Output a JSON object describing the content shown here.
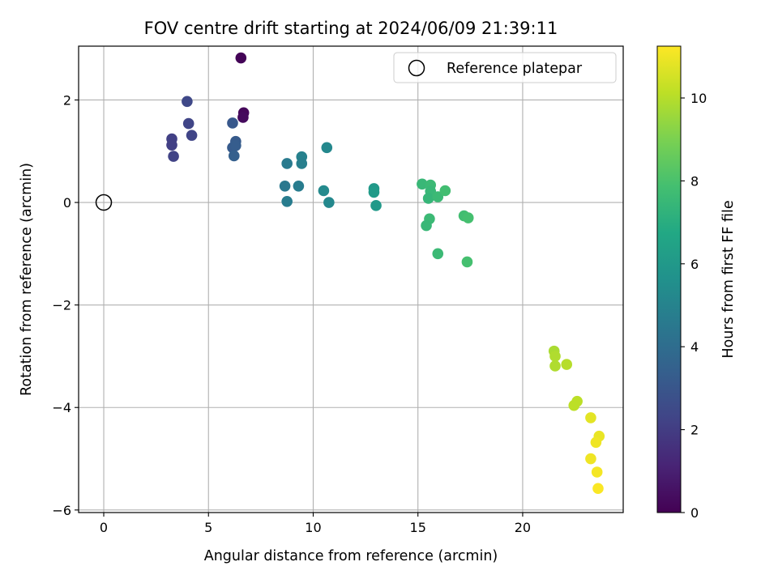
{
  "chart_data": {
    "type": "scatter",
    "title": "FOV centre drift starting at 2024/06/09 21:39:11",
    "xlabel": "Angular distance from reference (arcmin)",
    "ylabel": "Rotation from reference (arcmin)",
    "xlim": [
      -1.2,
      24.8
    ],
    "ylim": [
      -6.05,
      3.05
    ],
    "x_ticks": [
      0,
      5,
      10,
      15,
      20
    ],
    "x_tick_labels": [
      "0",
      "5",
      "10",
      "15",
      "20"
    ],
    "y_ticks": [
      -6,
      -4,
      -2,
      0,
      2
    ],
    "y_tick_labels": [
      "−6",
      "−4",
      "−2",
      "0",
      "2"
    ],
    "grid": true,
    "legend": {
      "placement": "top-right",
      "entries": [
        {
          "label": "Reference platepar",
          "marker": "open-circle",
          "color": "#000000"
        }
      ]
    },
    "reference_point": {
      "x": 0,
      "y": 0
    },
    "colorbar": {
      "label": "Hours from first FF file",
      "colormap": "viridis",
      "range": [
        0,
        11.25
      ],
      "ticks": [
        0,
        2,
        4,
        6,
        8,
        10
      ],
      "tick_labels": [
        "0",
        "2",
        "4",
        "6",
        "8",
        "10"
      ]
    },
    "points": [
      {
        "x": 6.55,
        "y": 2.82,
        "hours": 0.1
      },
      {
        "x": 6.68,
        "y": 1.75,
        "hours": 0.2
      },
      {
        "x": 6.65,
        "y": 1.66,
        "hours": 0.3
      },
      {
        "x": 3.98,
        "y": 1.97,
        "hours": 2.4
      },
      {
        "x": 4.05,
        "y": 1.54,
        "hours": 2.3
      },
      {
        "x": 4.2,
        "y": 1.31,
        "hours": 2.3
      },
      {
        "x": 3.25,
        "y": 1.24,
        "hours": 2.1
      },
      {
        "x": 3.25,
        "y": 1.12,
        "hours": 2.1
      },
      {
        "x": 3.33,
        "y": 0.9,
        "hours": 2.2
      },
      {
        "x": 6.15,
        "y": 1.55,
        "hours": 3.1
      },
      {
        "x": 6.3,
        "y": 1.19,
        "hours": 3.2
      },
      {
        "x": 6.15,
        "y": 1.07,
        "hours": 3.2
      },
      {
        "x": 6.3,
        "y": 1.11,
        "hours": 3.3
      },
      {
        "x": 6.22,
        "y": 0.91,
        "hours": 3.4
      },
      {
        "x": 8.75,
        "y": 0.76,
        "hours": 4.6
      },
      {
        "x": 8.65,
        "y": 0.32,
        "hours": 4.5
      },
      {
        "x": 8.75,
        "y": 0.02,
        "hours": 4.7
      },
      {
        "x": 9.45,
        "y": 0.89,
        "hours": 4.9
      },
      {
        "x": 9.45,
        "y": 0.76,
        "hours": 4.8
      },
      {
        "x": 9.3,
        "y": 0.32,
        "hours": 4.7
      },
      {
        "x": 10.65,
        "y": 1.07,
        "hours": 5.2
      },
      {
        "x": 10.5,
        "y": 0.23,
        "hours": 5.3
      },
      {
        "x": 10.75,
        "y": 0.0,
        "hours": 5.2
      },
      {
        "x": 12.9,
        "y": 0.27,
        "hours": 6.0
      },
      {
        "x": 12.9,
        "y": 0.2,
        "hours": 6.1
      },
      {
        "x": 13.0,
        "y": -0.06,
        "hours": 6.0
      },
      {
        "x": 15.2,
        "y": 0.36,
        "hours": 7.5
      },
      {
        "x": 15.6,
        "y": 0.34,
        "hours": 7.6
      },
      {
        "x": 15.6,
        "y": 0.22,
        "hours": 7.5
      },
      {
        "x": 15.5,
        "y": 0.08,
        "hours": 7.4
      },
      {
        "x": 15.95,
        "y": 0.11,
        "hours": 7.6
      },
      {
        "x": 16.3,
        "y": 0.23,
        "hours": 7.8
      },
      {
        "x": 15.55,
        "y": -0.32,
        "hours": 7.6
      },
      {
        "x": 15.4,
        "y": -0.45,
        "hours": 7.5
      },
      {
        "x": 15.95,
        "y": -1.0,
        "hours": 7.6
      },
      {
        "x": 17.2,
        "y": -0.26,
        "hours": 7.8
      },
      {
        "x": 17.4,
        "y": -0.3,
        "hours": 7.9
      },
      {
        "x": 17.35,
        "y": -1.16,
        "hours": 7.9
      },
      {
        "x": 21.5,
        "y": -2.9,
        "hours": 9.8
      },
      {
        "x": 21.55,
        "y": -3.0,
        "hours": 9.9
      },
      {
        "x": 21.55,
        "y": -3.19,
        "hours": 9.9
      },
      {
        "x": 22.1,
        "y": -3.16,
        "hours": 10.0
      },
      {
        "x": 22.6,
        "y": -3.88,
        "hours": 10.1
      },
      {
        "x": 22.45,
        "y": -3.96,
        "hours": 10.1
      },
      {
        "x": 23.25,
        "y": -4.2,
        "hours": 10.8
      },
      {
        "x": 23.65,
        "y": -4.56,
        "hours": 10.9
      },
      {
        "x": 23.5,
        "y": -4.68,
        "hours": 11.0
      },
      {
        "x": 23.25,
        "y": -5.0,
        "hours": 11.0
      },
      {
        "x": 23.55,
        "y": -5.26,
        "hours": 11.1
      },
      {
        "x": 23.6,
        "y": -5.58,
        "hours": 11.2
      }
    ]
  }
}
